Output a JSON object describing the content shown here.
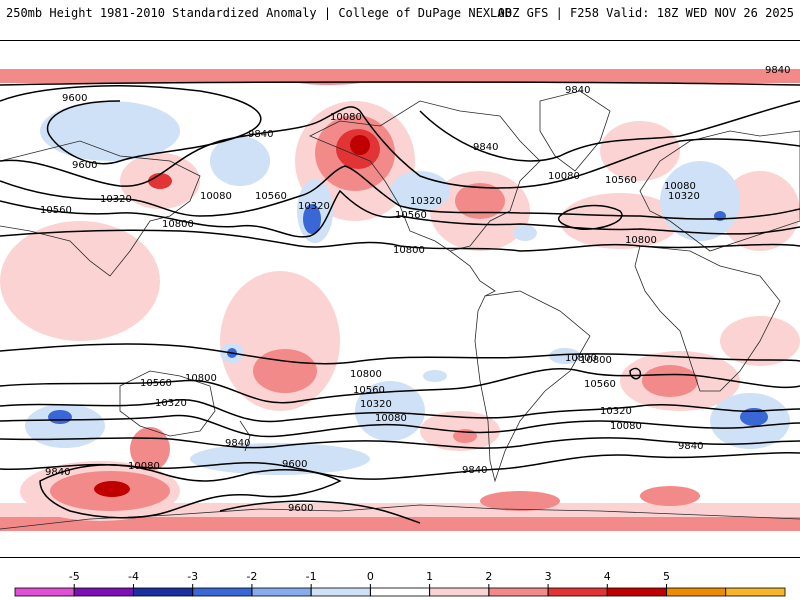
{
  "header": {
    "left_title": "250mb Height 1981-2010 Standardized Anomaly | College of DuPage NEXLAB",
    "right_title": "00Z GFS | F258 Valid: 18Z WED NOV 26 2025"
  },
  "colors": {
    "anom_pos_1": "#fbd3d3",
    "anom_pos_2": "#f38a8a",
    "anom_pos_3": "#e23434",
    "anom_pos_4": "#c00000",
    "anom_neg_1": "#cfe1f6",
    "anom_neg_2": "#6a94e8",
    "anom_neg_3": "#2b56c8",
    "contour": "#000000",
    "coastline": "#2a2a2a"
  },
  "contour_labels": [
    "9840",
    "9600",
    "9840",
    "10080",
    "9840",
    "9600",
    "10320",
    "10560",
    "10080",
    "10560",
    "10320",
    "10800",
    "10080",
    "10560",
    "10320",
    "10560",
    "10080",
    "10320",
    "10800",
    "10800",
    "9840",
    "10800",
    "10800",
    "10560",
    "10800",
    "10320",
    "10560",
    "10800",
    "10320",
    "10560",
    "10080",
    "10320",
    "10080",
    "9840",
    "9600",
    "9840",
    "10080",
    "9840",
    "9600",
    "9840"
  ],
  "colorbar": {
    "ticks": [
      "-5",
      "-4",
      "-3",
      "-2",
      "-1",
      "0",
      "1",
      "2",
      "3",
      "4",
      "5"
    ],
    "bins": [
      "#e14fd5",
      "#7d0fb8",
      "#1a2fa0",
      "#3a67d6",
      "#86acee",
      "#cfe1f6",
      "#ffffff",
      "#fbd3d3",
      "#f38a8a",
      "#e23434",
      "#c00000",
      "#ee8c00",
      "#f6b52a"
    ]
  }
}
